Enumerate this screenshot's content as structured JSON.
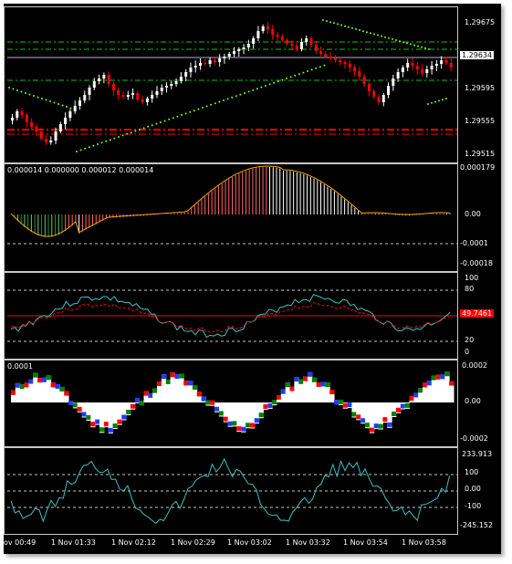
{
  "colors": {
    "background": "#000000",
    "bull_candle": "#ffffff",
    "bear_candle": "#ff0000",
    "grid": "#c8c8c8",
    "parabolic_sar": "#7cfc00",
    "support_line": "#ff0000",
    "green_dash_line": "#00c800",
    "ao_up": "#ff6666",
    "ao_down": "#ffffff",
    "ao_green": "#2e8b2e",
    "rsi_line": "#40c0c0",
    "rsi_signal": "#ff0000",
    "macd_up": "#ffffff",
    "macd_down": "#ff0000",
    "macd_blue": "#1e3cff",
    "macd_green": "#008000",
    "cci_line": "#40c0c0"
  },
  "main_pane": {
    "price_labels": [
      "1.29675",
      "1.29634",
      "1.29595",
      "1.29555",
      "1.29515"
    ],
    "current_price": "1.29634"
  },
  "ao_pane": {
    "title": "0.000014 0.000000 0.000012 0.000014",
    "scale_labels": [
      "0.000179",
      "0.00",
      "-0.0001",
      "-0.00018"
    ]
  },
  "rsi_pane": {
    "scale_labels": [
      "100",
      "80",
      "20",
      "0"
    ],
    "current_value": "49.7461"
  },
  "macd_pane": {
    "title": "0.0001",
    "scale_labels": [
      "0.0002",
      "0.00",
      "-0.0002"
    ]
  },
  "cci_pane": {
    "scale_labels": [
      "233.913",
      "100",
      "0.00",
      "-100",
      "-245.152"
    ]
  },
  "time_axis": [
    "ov 00:49",
    "1 Nov 01:33",
    "1 Nov 02:12",
    "1 Nov 02:29",
    "1 Nov 03:02",
    "1 Nov 03:32",
    "1 Nov 03:54",
    "1 Nov 03:58"
  ]
}
